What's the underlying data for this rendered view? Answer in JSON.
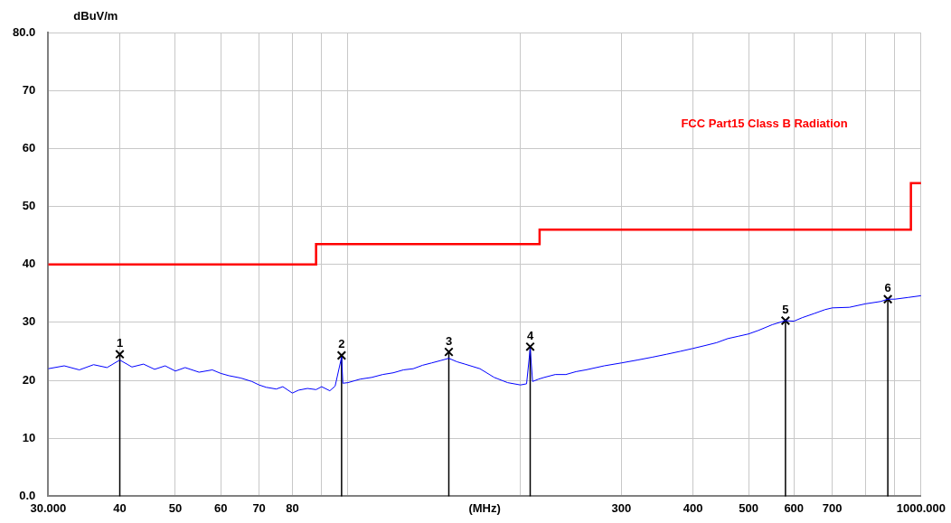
{
  "chart_data": {
    "type": "line",
    "xlabel": "(MHz)",
    "ylabel": "dBuV/m",
    "log": "x",
    "grid": true,
    "legend": false,
    "marker": "none",
    "xlim": [
      30,
      1000
    ],
    "ylim": [
      0,
      80
    ],
    "xticks": [
      {
        "value": 30,
        "label": "30.000"
      },
      40,
      50,
      60,
      70,
      80,
      {
        "value": 90,
        "label": null
      },
      {
        "value": 100,
        "label": null
      },
      {
        "value": 200,
        "label": null
      },
      300,
      400,
      500,
      600,
      700,
      {
        "value": 800,
        "label": null
      },
      {
        "value": 900,
        "label": null
      },
      {
        "value": 1000,
        "label": "1000.000"
      }
    ],
    "yticks": [
      {
        "value": 0,
        "label": "0.0"
      },
      10,
      20,
      30,
      40,
      50,
      60,
      70,
      {
        "value": 80,
        "label": "80.0"
      }
    ],
    "series": [
      {
        "color": "#0000ff",
        "x": [
          30,
          32,
          34,
          36,
          38,
          40,
          42,
          44,
          46,
          48,
          50,
          52,
          55,
          58,
          60,
          62,
          65,
          68,
          70,
          72,
          75,
          77,
          80,
          82,
          85,
          88,
          90,
          93,
          95,
          97.5,
          98,
          100,
          105,
          110,
          115,
          120,
          125,
          130,
          135,
          140,
          145,
          150,
          155,
          160,
          170,
          180,
          190,
          200,
          205,
          208,
          210,
          215,
          220,
          230,
          240,
          250,
          260,
          280,
          300,
          320,
          340,
          360,
          380,
          400,
          420,
          440,
          460,
          480,
          500,
          520,
          550,
          580,
          600,
          620,
          650,
          680,
          700,
          750,
          800,
          850,
          875,
          900,
          950,
          1000
        ],
        "values": [
          22,
          22.5,
          21.8,
          22.7,
          22.2,
          23.5,
          22.3,
          22.8,
          21.9,
          22.5,
          21.6,
          22.2,
          21.4,
          21.8,
          21.2,
          20.8,
          20.4,
          19.8,
          19.2,
          18.8,
          18.5,
          18.9,
          17.8,
          18.3,
          18.6,
          18.4,
          18.9,
          18.2,
          19,
          24,
          19.5,
          19.6,
          20.2,
          20.5,
          21,
          21.3,
          21.8,
          22,
          22.6,
          23,
          23.4,
          23.8,
          23.2,
          22.8,
          22,
          20.5,
          19.6,
          19.2,
          19.4,
          25.5,
          19.8,
          20.2,
          20.5,
          21,
          21,
          21.5,
          21.8,
          22.5,
          23,
          23.5,
          24,
          24.5,
          25,
          25.5,
          26,
          26.5,
          27.2,
          27.6,
          28,
          28.6,
          29.6,
          30.3,
          30.2,
          30.8,
          31.5,
          32.2,
          32.5,
          32.6,
          33.2,
          33.6,
          34,
          34,
          34.3,
          34.6
        ]
      },
      {
        "type": "step",
        "name": "FCC Part15 Class B Radiation",
        "color": "#ff0000",
        "x": [
          30,
          88,
          216,
          960,
          1000
        ],
        "values": [
          40,
          43.5,
          46,
          54,
          54
        ]
      },
      {
        "type": "lollipop",
        "marker": "cross",
        "color": "#000000",
        "x": [
          40,
          97.5,
          150,
          208,
          580,
          875
        ],
        "values": [
          24.5,
          24.3,
          24.9,
          25.8,
          30.3,
          34
        ]
      }
    ],
    "annotations": [
      {
        "text": "1",
        "x": 40,
        "y": 24.5
      },
      {
        "text": "2",
        "x": 97.5,
        "y": 24.3
      },
      {
        "text": "3",
        "x": 150,
        "y": 24.9
      },
      {
        "text": "4",
        "x": 208,
        "y": 25.8
      },
      {
        "text": "5",
        "x": 580,
        "y": 30.3
      },
      {
        "text": "6",
        "x": 875,
        "y": 34
      }
    ]
  }
}
